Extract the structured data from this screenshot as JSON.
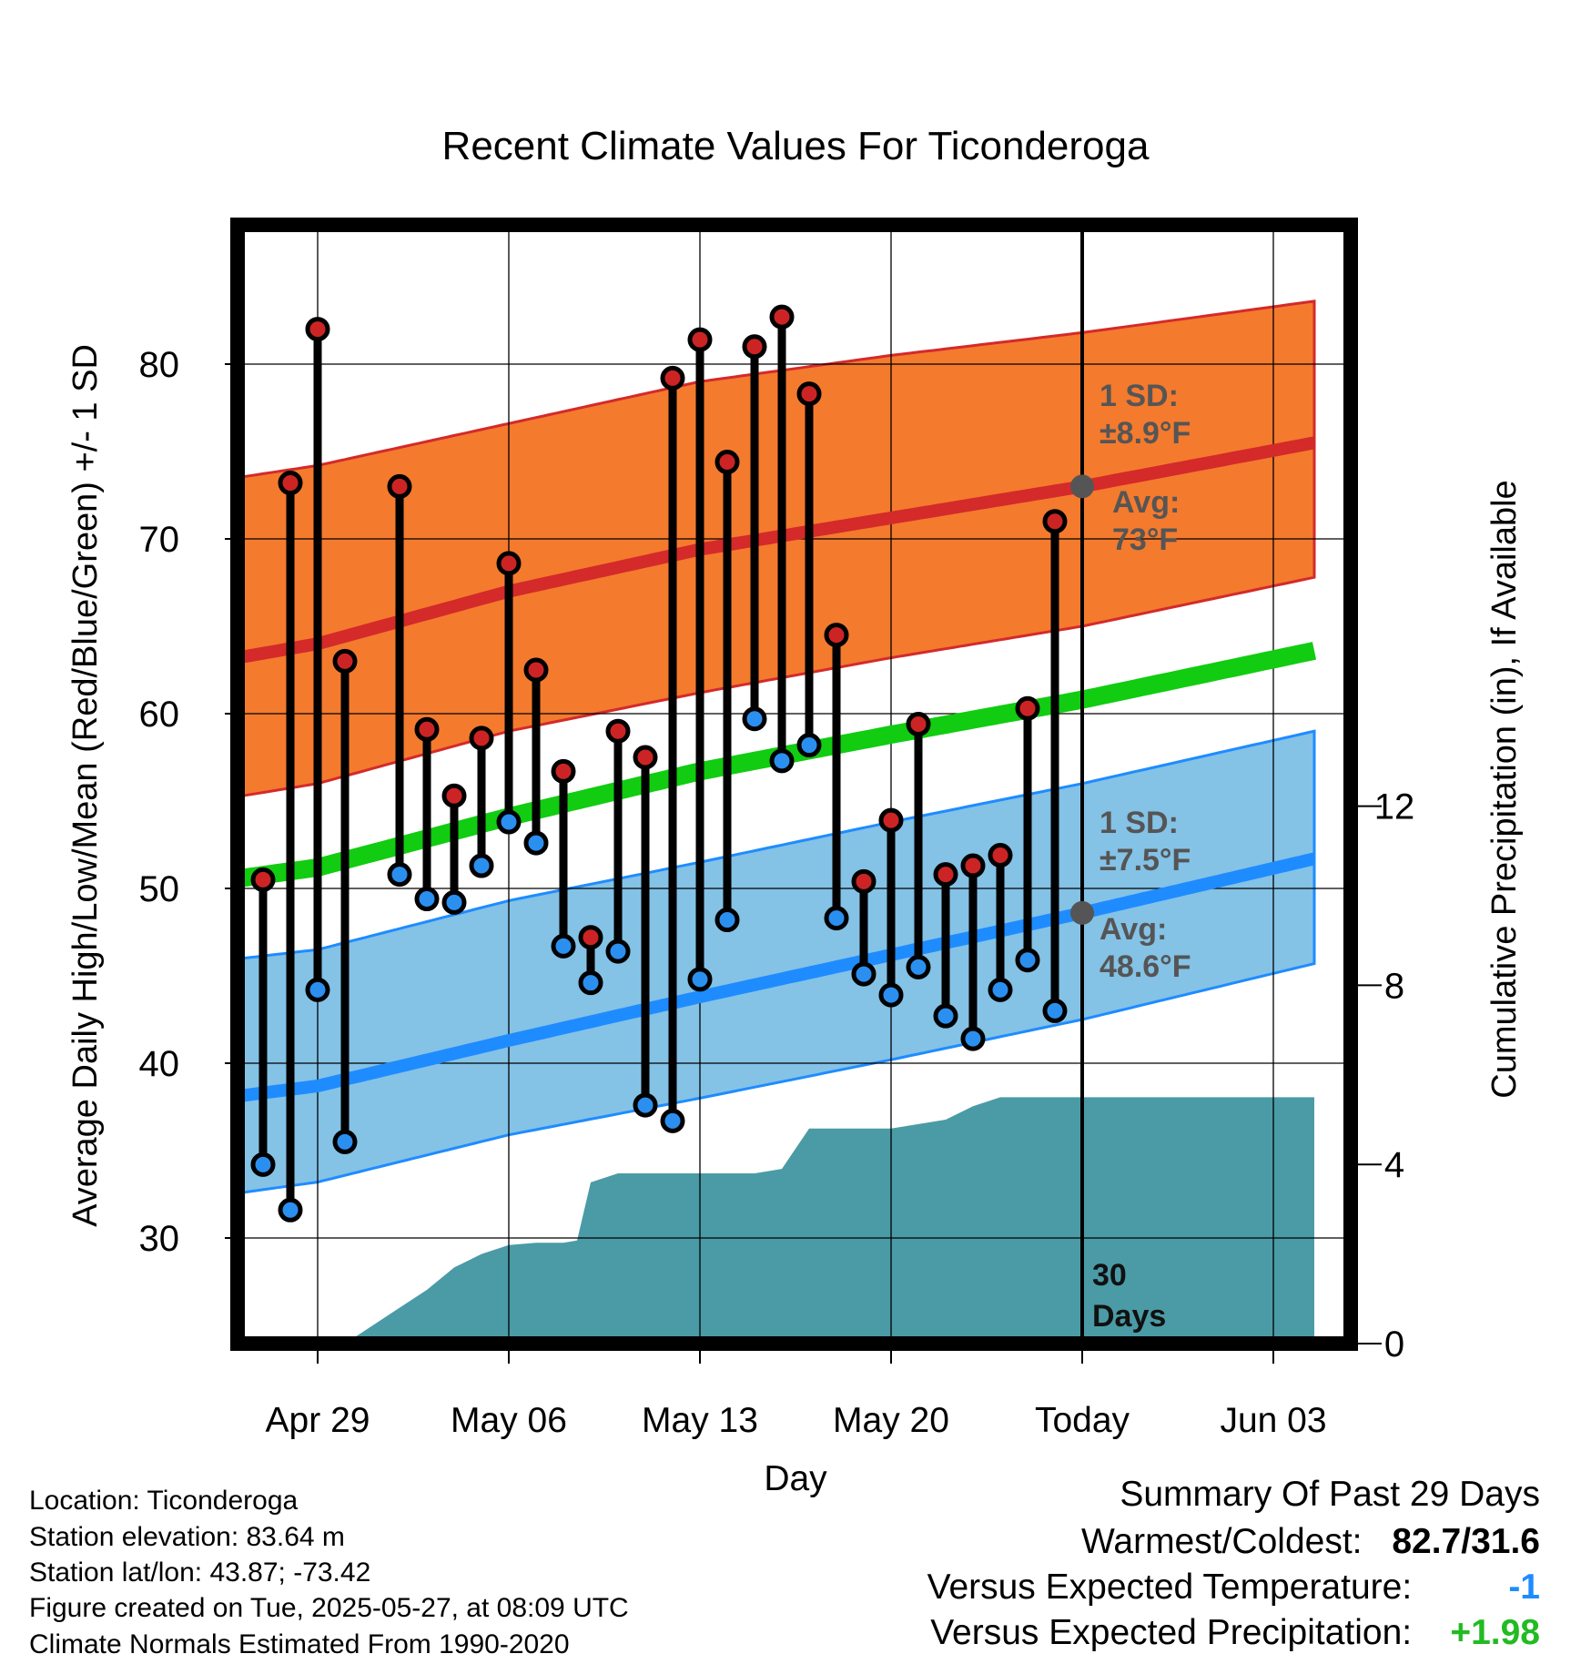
{
  "chart_data": {
    "type": "line",
    "title": "Recent Climate Values For Ticonderoga",
    "xlabel": "Day",
    "ylabel": "Average Daily High/Low/Mean (Red/Blue/Green) +/- 1 SD",
    "y2label": "Cumulative Precipitation (in), If Available",
    "ylim": [
      24,
      88
    ],
    "y2lim": [
      0,
      30
    ],
    "xlim": [
      -33.5,
      8.5
    ],
    "x_ticks": [
      {
        "x": -28,
        "label": "Apr 29"
      },
      {
        "x": -21,
        "label": "May 06"
      },
      {
        "x": -14,
        "label": "May 13"
      },
      {
        "x": -7,
        "label": "May 20"
      },
      {
        "x": 0,
        "label": "Today"
      },
      {
        "x": 7,
        "label": "Jun 03"
      }
    ],
    "y_ticks": [
      30,
      40,
      50,
      60,
      70,
      80
    ],
    "y2_ticks": [
      0,
      4,
      8,
      12
    ],
    "grid": true,
    "normals": {
      "x": [
        -33.5,
        -28,
        -21,
        -14,
        -7,
        0,
        8.5
      ],
      "high_avg": [
        62.5,
        64.0,
        67.0,
        69.4,
        71.2,
        73.0,
        75.5
      ],
      "high_upper": [
        72.9,
        74.2,
        76.6,
        79.0,
        80.5,
        81.8,
        83.6
      ],
      "high_lower": [
        54.6,
        56.0,
        59.0,
        61.2,
        63.2,
        65.0,
        67.8
      ],
      "mean": [
        50.0,
        51.2,
        54.1,
        56.7,
        58.8,
        60.8,
        63.6
      ],
      "low_avg": [
        37.6,
        38.7,
        41.3,
        43.8,
        46.2,
        48.6,
        51.7
      ],
      "low_upper": [
        45.5,
        46.5,
        49.3,
        51.5,
        53.8,
        56.0,
        59.0
      ],
      "low_lower": [
        32.0,
        33.2,
        35.9,
        38.0,
        40.2,
        42.5,
        45.7
      ]
    },
    "series": [
      {
        "name": "High",
        "x": [
          -30,
          -29,
          -28,
          -27,
          -25,
          -24,
          -23,
          -22,
          -21,
          -20,
          -19,
          -18,
          -17,
          -16,
          -15,
          -14,
          -13,
          -12,
          -11,
          -10,
          -9,
          -8,
          -7,
          -6,
          -5,
          -4,
          -3,
          -2,
          -1
        ],
        "values": [
          50.5,
          73.2,
          82.0,
          63.0,
          73.0,
          59.1,
          55.3,
          58.6,
          68.6,
          62.5,
          56.7,
          47.2,
          59.0,
          57.5,
          79.2,
          81.4,
          74.4,
          81.0,
          82.7,
          78.3,
          64.5,
          50.4,
          53.9,
          59.4,
          50.8,
          51.3,
          51.9,
          60.3,
          71.0
        ]
      },
      {
        "name": "Low",
        "x": [
          -30,
          -29,
          -28,
          -27,
          -25,
          -24,
          -23,
          -22,
          -21,
          -20,
          -19,
          -18,
          -17,
          -16,
          -15,
          -14,
          -13,
          -12,
          -11,
          -10,
          -9,
          -8,
          -7,
          -6,
          -5,
          -4,
          -3,
          -2,
          -1
        ],
        "values": [
          34.2,
          31.6,
          44.2,
          35.5,
          50.8,
          49.4,
          49.2,
          51.3,
          53.8,
          52.6,
          46.7,
          44.6,
          46.4,
          37.6,
          36.7,
          44.8,
          48.2,
          59.7,
          57.3,
          58.2,
          48.3,
          45.1,
          43.9,
          45.5,
          42.7,
          41.4,
          44.2,
          45.9,
          43.0
        ]
      }
    ],
    "precip": {
      "x": [
        -33.5,
        -27,
        -26.5,
        -25,
        -24,
        -23,
        -22,
        -21,
        -20,
        -19,
        -18.5,
        -18,
        -17,
        -14,
        -13,
        -12,
        -11,
        -10,
        -9,
        -8,
        -7,
        -6,
        -5,
        -4,
        -3,
        -2,
        -1,
        0,
        8.5
      ],
      "values": [
        0,
        0,
        0.2,
        0.8,
        1.2,
        1.7,
        2.0,
        2.2,
        2.25,
        2.25,
        2.3,
        3.6,
        3.8,
        3.8,
        3.8,
        3.8,
        3.9,
        4.8,
        4.8,
        4.8,
        4.8,
        4.9,
        5.0,
        5.3,
        5.5,
        5.5,
        5.5,
        5.5,
        5.5
      ]
    },
    "annotations": {
      "high_sd": "1 SD:\n±8.9°F",
      "high_avg": "Avg:\n73°F",
      "low_sd": "1 SD:\n±7.5°F",
      "low_avg": "Avg:\n48.6°F",
      "days": "30\nDays"
    },
    "colors": {
      "high_band": "#f47a2e",
      "high_line": "#d42a2a",
      "mean_line": "#11cc11",
      "low_band": "#84c2e6",
      "low_line": "#1e8cff",
      "precip": "#4a9ba6",
      "high_dot": "#cc2424",
      "low_dot": "#2b8ff0",
      "annotation": "#555555"
    }
  },
  "info": {
    "location": "Location: Ticonderoga",
    "elevation": "Station elevation: 83.64 m",
    "latlon": "Station lat/lon: 43.87; -73.42",
    "created": "Figure created on Tue, 2025-05-27, at 08:09 UTC",
    "normals": "Climate Normals Estimated From 1990-2020"
  },
  "summary": {
    "heading": "Summary Of Past 29 Days",
    "warm_cold_label": "Warmest/Coldest:",
    "warm_cold_value": "82.7/31.6",
    "temp_label": "Versus Expected Temperature:",
    "temp_value": "-1",
    "temp_color": "#1e8cff",
    "precip_label": "Versus Expected Precipitation:",
    "precip_value": "+1.98",
    "precip_color": "#22bb22"
  }
}
